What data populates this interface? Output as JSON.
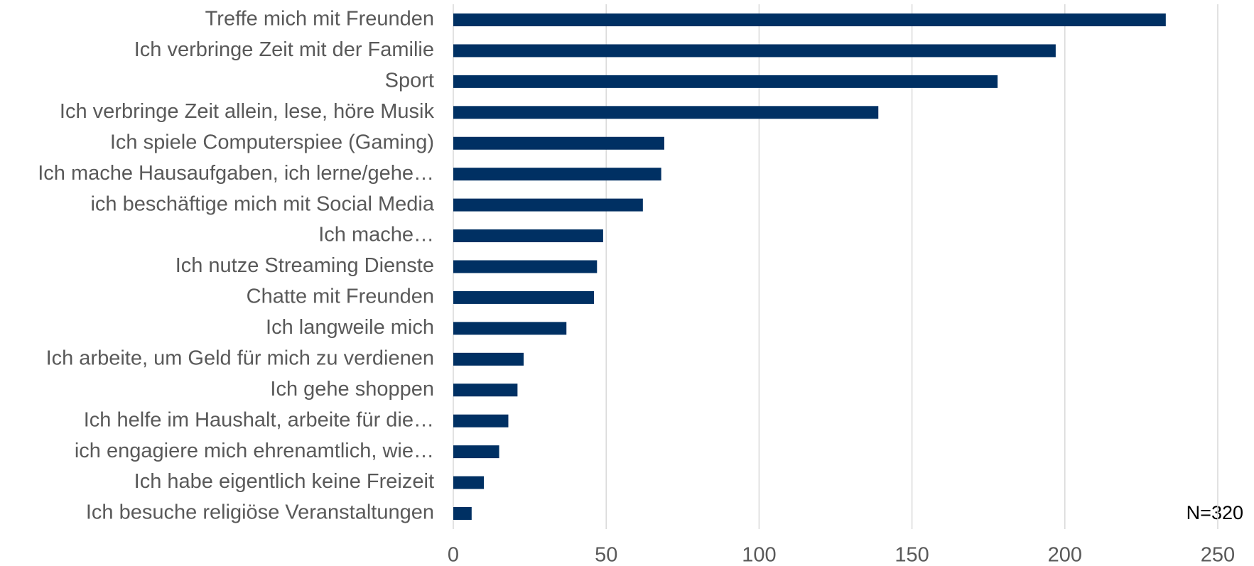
{
  "chart_data": {
    "type": "bar",
    "orientation": "horizontal",
    "categories": [
      "Treffe mich mit Freunden",
      "Ich verbringe Zeit mit der Familie",
      "Sport",
      "Ich verbringe Zeit allein, lese, höre Musik",
      "Ich spiele Computerspiee (Gaming)",
      "Ich mache Hausaufgaben, ich lerne/gehe…",
      "ich beschäftige mich mit Social Media",
      "Ich mache…",
      "Ich nutze Streaming Dienste",
      "Chatte mit Freunden",
      "Ich langweile mich",
      "Ich arbeite, um Geld für mich zu verdienen",
      "Ich gehe shoppen",
      "Ich helfe im Haushalt, arbeite für die…",
      "ich engagiere mich ehrenamtlich, wie…",
      "Ich habe eigentlich keine Freizeit",
      "Ich besuche religiöse Veranstaltungen"
    ],
    "values": [
      233,
      197,
      178,
      139,
      69,
      68,
      62,
      49,
      47,
      46,
      37,
      23,
      21,
      18,
      15,
      10,
      6
    ],
    "color": "#003063",
    "xlim": [
      0,
      250
    ],
    "xticks": [
      0,
      50,
      100,
      150,
      200,
      250
    ],
    "grid": true,
    "annotation": "N=320"
  }
}
